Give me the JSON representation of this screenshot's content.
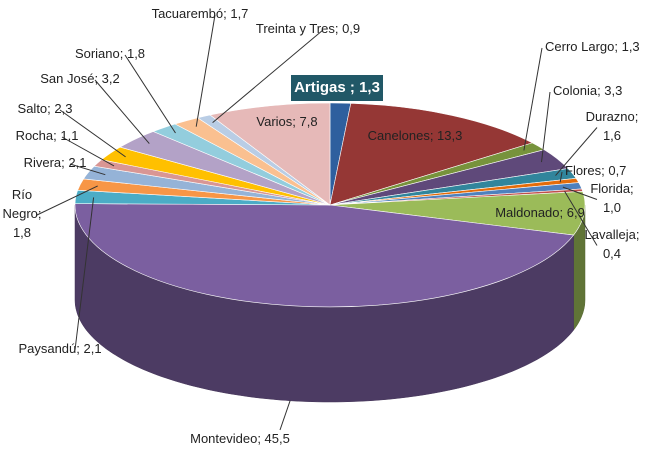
{
  "chart_data": {
    "type": "pie3d",
    "categories": [
      "Artigas ; 1,3",
      "Canelones; 13,3",
      "Cerro Largo; 1,3",
      "Colonia; 3,3",
      "Durazno;\n1,6",
      "Flores; 0,7",
      "Florida;\n1,0",
      "Lavalleja;\n0,4",
      "Maldonado; 6,9",
      "Montevideo; 45,5",
      "Paysandú; 2,1",
      "Río\nNegro;\n1,8",
      "Rivera; 2,1",
      "Rocha; 1,1",
      "Salto; 2,3",
      "San José; 3,2",
      "Soriano; 1,8",
      "Tacuarembó; 1,7",
      "Treinta y Tres; 0,9",
      "Varios; 7,8"
    ],
    "values": [
      1.3,
      13.3,
      1.3,
      3.3,
      1.6,
      0.7,
      1.0,
      0.4,
      6.9,
      45.5,
      2.1,
      1.8,
      2.1,
      1.1,
      2.3,
      3.2,
      1.8,
      1.7,
      0.9,
      7.8
    ],
    "colors": [
      "#2e5f9e",
      "#953735",
      "#77933c",
      "#5f497a",
      "#31859c",
      "#e46c0a",
      "#4f81bd",
      "#c0504d",
      "#9bbb59",
      "#7b5fa0",
      "#4bacc6",
      "#f79646",
      "#95b3d7",
      "#d99694",
      "#ffc000",
      "#b3a2c7",
      "#93cddd",
      "#fac090",
      "#b9cde5",
      "#e6b9b8"
    ]
  }
}
